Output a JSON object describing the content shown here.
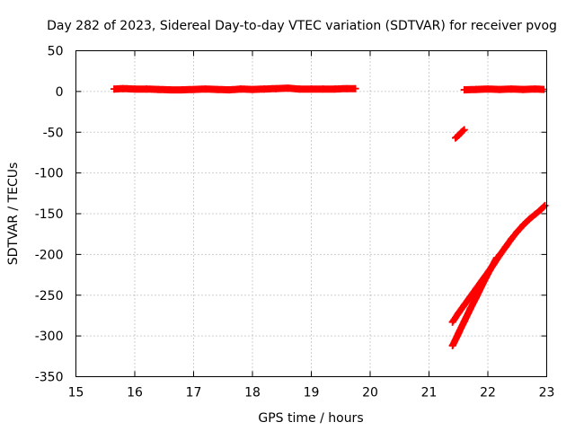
{
  "chart_data": {
    "type": "scatter",
    "title": "Day 282 of 2023, Sidereal Day-to-day VTEC variation (SDTVAR) for receiver pvog",
    "xlabel": "GPS time / hours",
    "ylabel": "SDTVAR / TECUs",
    "xlim": [
      15,
      23
    ],
    "ylim": [
      -350,
      50
    ],
    "xticks": [
      15,
      16,
      17,
      18,
      19,
      20,
      21,
      22,
      23
    ],
    "yticks": [
      50,
      0,
      -50,
      -100,
      -150,
      -200,
      -250,
      -300,
      -350
    ],
    "grid": true,
    "legend": "none",
    "marker": "plus",
    "color": "#ff0000",
    "series": [
      {
        "points": [
          [
            15.65,
            3
          ],
          [
            15.8,
            3.5
          ],
          [
            16.0,
            3
          ],
          [
            16.2,
            3
          ],
          [
            16.4,
            2.5
          ],
          [
            16.6,
            2
          ],
          [
            16.8,
            2
          ],
          [
            17.0,
            2.5
          ],
          [
            17.2,
            3
          ],
          [
            17.4,
            2.5
          ],
          [
            17.6,
            2
          ],
          [
            17.8,
            3
          ],
          [
            18.0,
            2.5
          ],
          [
            18.2,
            3
          ],
          [
            18.4,
            3.5
          ],
          [
            18.6,
            4
          ],
          [
            18.8,
            3
          ],
          [
            19.0,
            3
          ],
          [
            19.2,
            3
          ],
          [
            19.4,
            3
          ],
          [
            19.6,
            3.5
          ],
          [
            19.75,
            3.5
          ]
        ]
      },
      {
        "points": [
          [
            21.45,
            -57
          ],
          [
            21.5,
            -54
          ],
          [
            21.55,
            -50
          ],
          [
            21.6,
            -47
          ]
        ]
      },
      {
        "points": [
          [
            21.6,
            2
          ],
          [
            21.8,
            2.5
          ],
          [
            22.0,
            3
          ],
          [
            22.2,
            2.5
          ],
          [
            22.4,
            3
          ],
          [
            22.6,
            2.5
          ],
          [
            22.8,
            3
          ],
          [
            22.95,
            2.5
          ]
        ]
      },
      {
        "points": [
          [
            21.4,
            -283
          ],
          [
            21.5,
            -272
          ],
          [
            21.6,
            -262
          ],
          [
            21.7,
            -252
          ],
          [
            21.8,
            -242
          ],
          [
            21.9,
            -232
          ],
          [
            22.0,
            -222
          ],
          [
            22.1,
            -212
          ],
          [
            22.2,
            -201
          ],
          [
            22.3,
            -191
          ],
          [
            22.4,
            -181
          ],
          [
            22.5,
            -172
          ],
          [
            22.6,
            -164
          ],
          [
            22.7,
            -157
          ],
          [
            22.8,
            -151
          ],
          [
            22.9,
            -145
          ],
          [
            22.97,
            -140
          ]
        ]
      },
      {
        "points": [
          [
            21.4,
            -312
          ],
          [
            21.5,
            -297
          ],
          [
            21.6,
            -282
          ],
          [
            21.7,
            -267
          ],
          [
            21.8,
            -253
          ],
          [
            21.9,
            -238
          ],
          [
            22.0,
            -224
          ],
          [
            22.1,
            -211
          ],
          [
            22.15,
            -204
          ]
        ]
      }
    ]
  }
}
